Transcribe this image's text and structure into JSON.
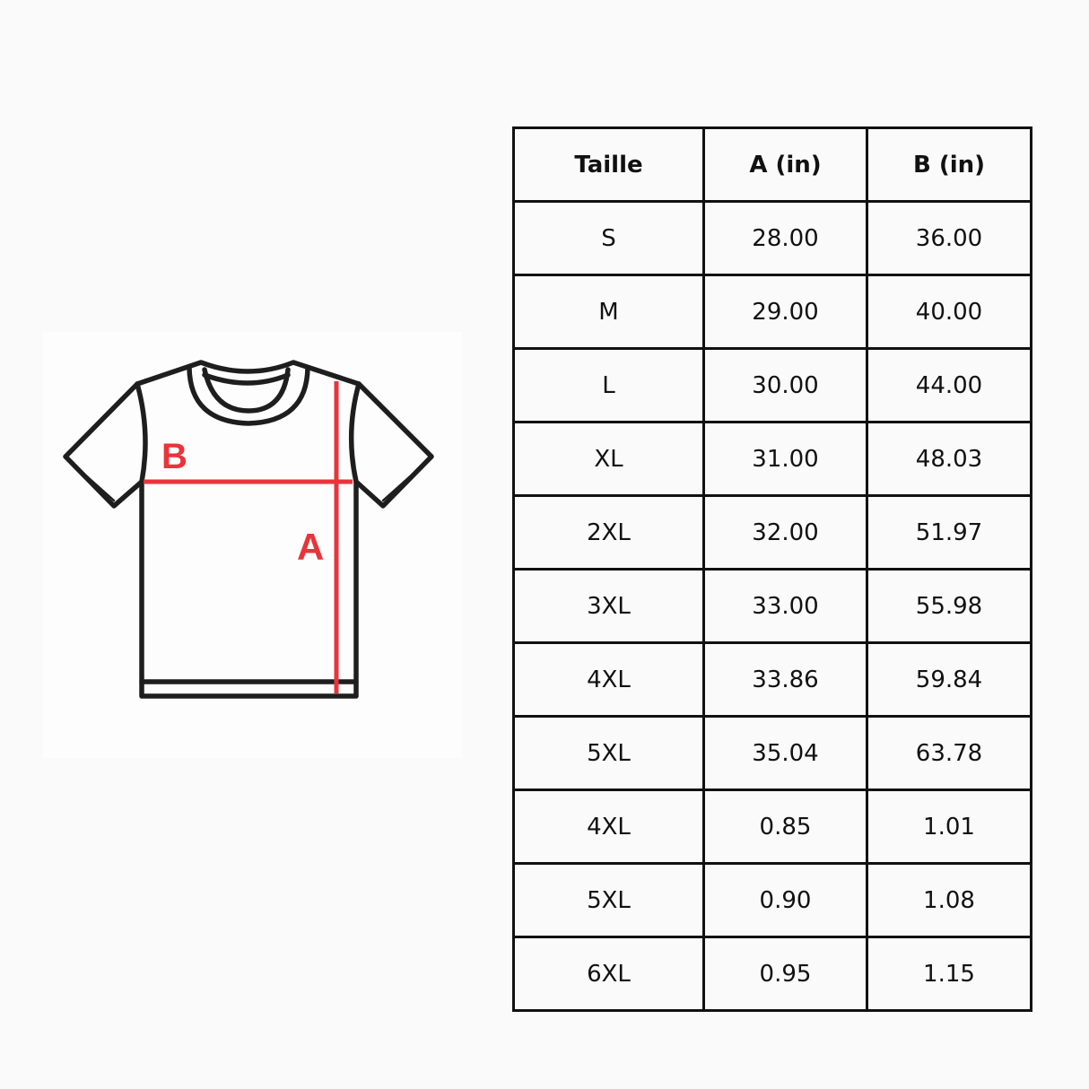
{
  "diagram": {
    "label_b": "B",
    "label_a": "A",
    "measure_color": "#e8343a",
    "outline_color": "#1e1e1e"
  },
  "table": {
    "headers": [
      "Taille",
      "A (in)",
      "B (in)"
    ],
    "rows": [
      [
        "S",
        "28.00",
        "36.00"
      ],
      [
        "M",
        "29.00",
        "40.00"
      ],
      [
        "L",
        "30.00",
        "44.00"
      ],
      [
        "XL",
        "31.00",
        "48.03"
      ],
      [
        "2XL",
        "32.00",
        "51.97"
      ],
      [
        "3XL",
        "33.00",
        "55.98"
      ],
      [
        "4XL",
        "33.86",
        "59.84"
      ],
      [
        "5XL",
        "35.04",
        "63.78"
      ],
      [
        "4XL",
        "0.85",
        "1.01"
      ],
      [
        "5XL",
        "0.90",
        "1.08"
      ],
      [
        "6XL",
        "0.95",
        "1.15"
      ]
    ]
  }
}
